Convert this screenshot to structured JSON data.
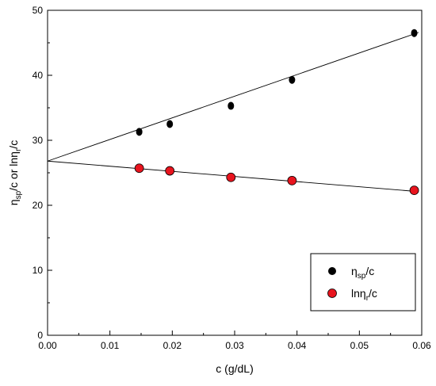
{
  "chart_data": {
    "type": "scatter",
    "xlabel": "c (g/dL)",
    "ylabel": {
      "part1_base": "η",
      "part1_sub": "sp",
      "part1_tail": "/c",
      "connector": "or",
      "part2_base": "lnη",
      "part2_sub": "r",
      "part2_tail": "/c"
    },
    "xlim": [
      0.0,
      0.06
    ],
    "ylim": [
      0,
      50
    ],
    "x_ticks": [
      "0.00",
      "0.01",
      "0.02",
      "0.03",
      "0.04",
      "0.05",
      "0.06"
    ],
    "y_ticks": [
      "0",
      "10",
      "20",
      "30",
      "40",
      "50"
    ],
    "grid": false,
    "legend_position": "bottom-right",
    "series": [
      {
        "name_base": "η",
        "name_sub": "sp",
        "name_tail": "/c",
        "color": "#000000",
        "marker": "circle",
        "x": [
          0.0147,
          0.0196,
          0.0294,
          0.0392,
          0.0588
        ],
        "y": [
          31.3,
          32.5,
          35.3,
          39.3,
          46.5
        ],
        "fit_line": {
          "x": [
            0.0,
            0.0595
          ],
          "y": [
            26.8,
            46.6
          ]
        }
      },
      {
        "name_base": "lnη",
        "name_sub": "r",
        "name_tail": "/c",
        "color": "#e8141e",
        "marker": "circle",
        "x": [
          0.0147,
          0.0196,
          0.0294,
          0.0392,
          0.0588
        ],
        "y": [
          25.7,
          25.3,
          24.3,
          23.8,
          22.3
        ],
        "fit_line": {
          "x": [
            0.0,
            0.0595
          ],
          "y": [
            26.8,
            22.1
          ]
        }
      }
    ]
  }
}
